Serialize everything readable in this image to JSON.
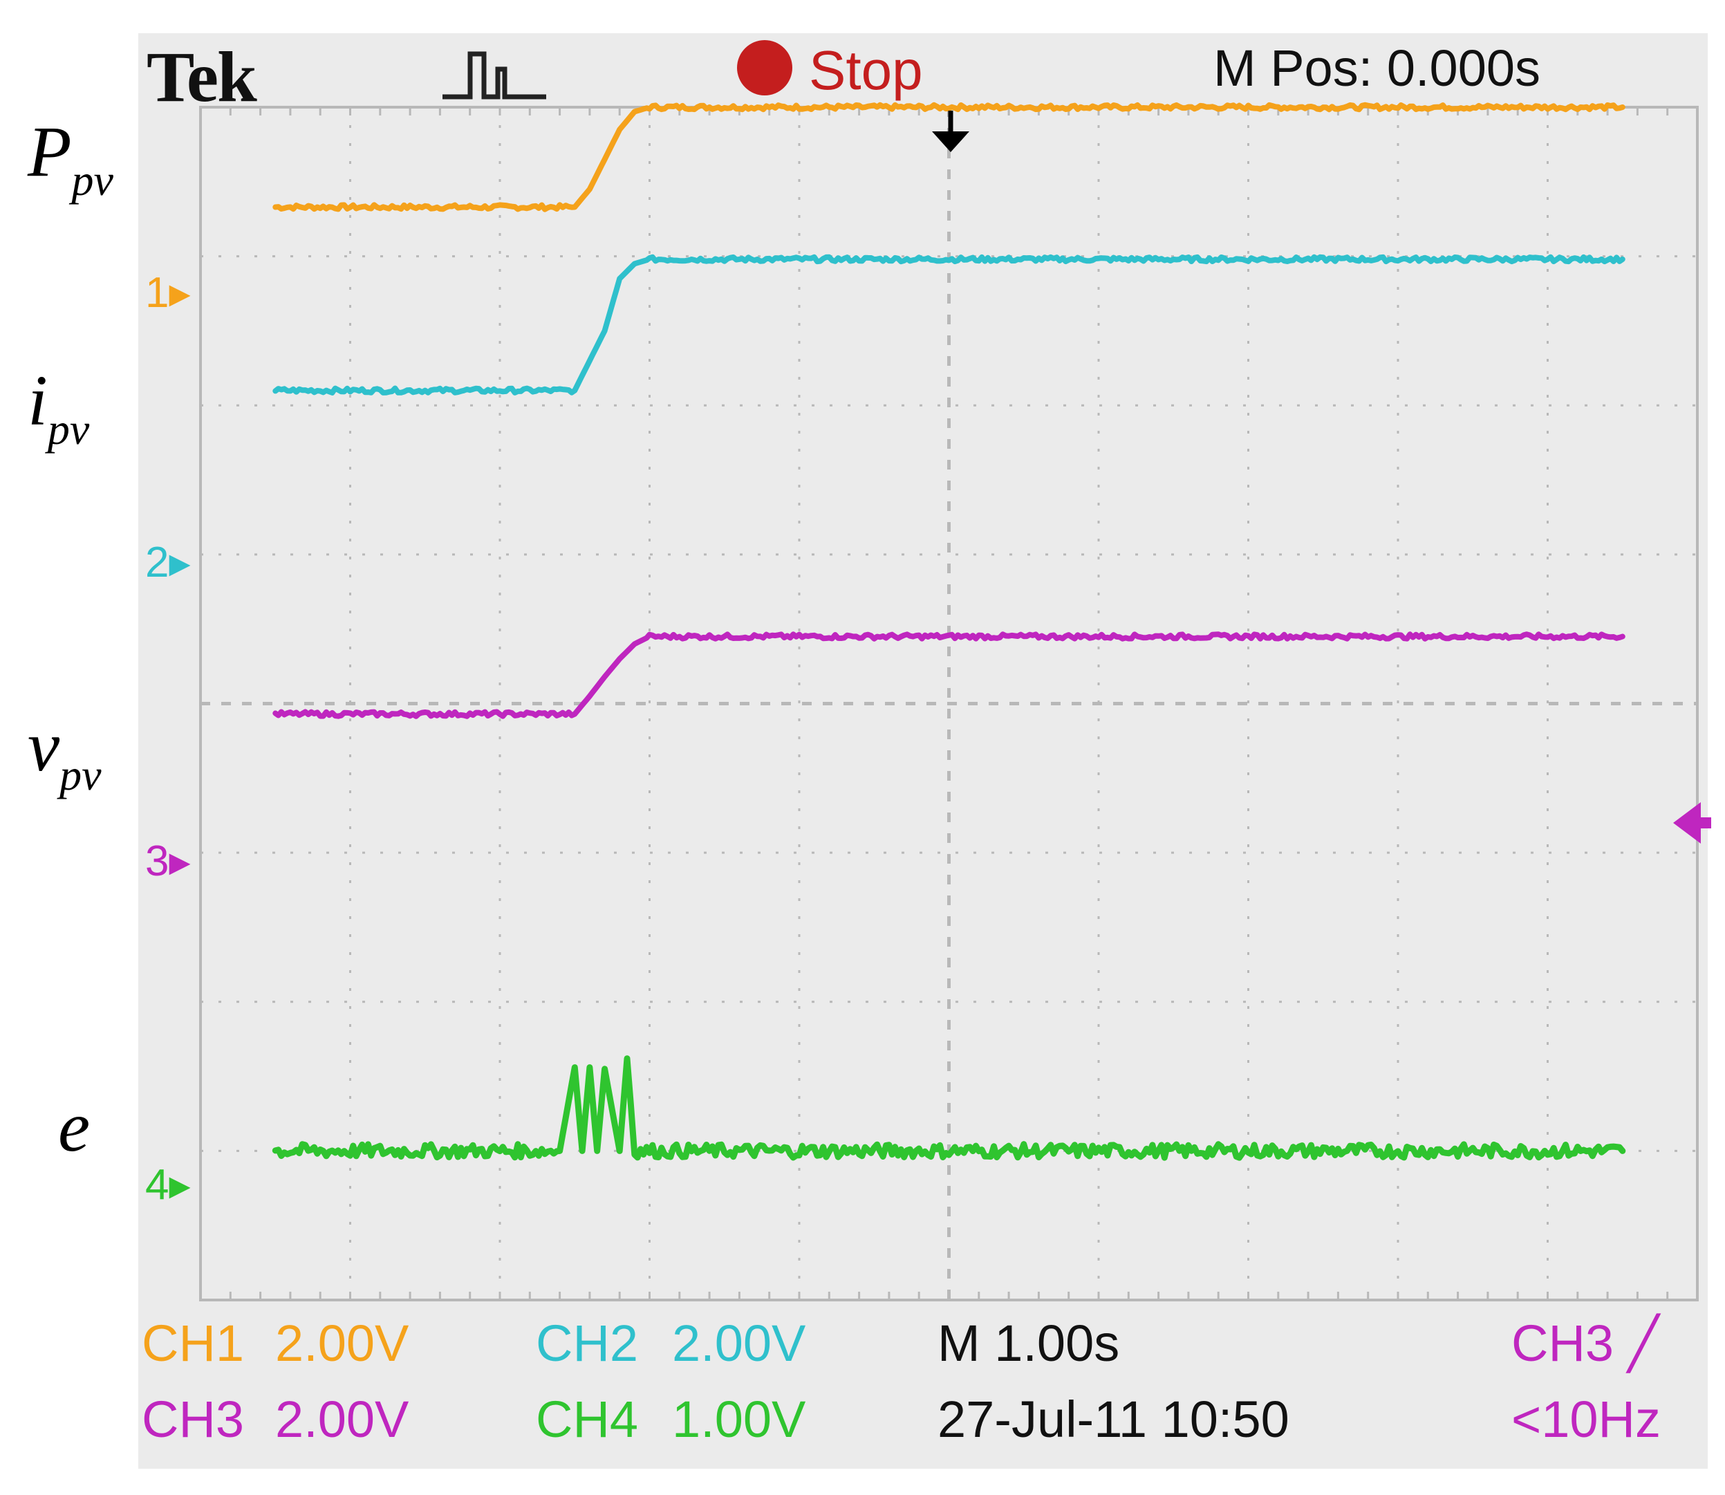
{
  "header": {
    "brand": "Tek",
    "run_status": "Stop",
    "position": "M Pos: 0.000s",
    "icons": [
      "trigger-pulse-icon",
      "stop-dot-icon",
      "trigger-position-arrow-icon",
      "ch3-level-marker-icon"
    ]
  },
  "footer": {
    "ch1": {
      "label": "CH1",
      "scale": "2.00V"
    },
    "ch2": {
      "label": "CH2",
      "scale": "2.00V"
    },
    "ch3": {
      "label": "CH3",
      "scale": "2.00V"
    },
    "ch4": {
      "label": "CH4",
      "scale": "1.00V"
    },
    "timebase": "M 1.00s",
    "datetime": "27-Jul-11 10:50",
    "trigger_source": "CH3",
    "trigger_freq": "<10Hz"
  },
  "colors": {
    "ch1": "#f5a21b",
    "ch2": "#2fc0cc",
    "ch3": "#bf26bf",
    "ch4": "#2fc42f",
    "stop": "#c41e1e",
    "panel": "#ebebeb"
  },
  "chart_data": {
    "type": "line",
    "x_unit": "s",
    "xlim": [
      -5,
      5
    ],
    "ylim": [
      -4,
      4
    ],
    "grid": true,
    "channel_markers": [
      {
        "channel": "1",
        "div": 3.0
      },
      {
        "channel": "2",
        "div": 1.2
      },
      {
        "channel": "3",
        "div": -0.8
      },
      {
        "channel": "4",
        "div": -3.0
      }
    ],
    "series": [
      {
        "name": "P",
        "subscript": "pv",
        "channel": "CH1",
        "x": [
          -4.5,
          -2.5,
          -2.4,
          -2.3,
          -2.2,
          -2.1,
          -2.0,
          4.5
        ],
        "y": [
          0.33,
          0.33,
          0.45,
          0.65,
          0.85,
          0.97,
          1.0,
          1.0
        ]
      },
      {
        "name": "i",
        "subscript": "pv",
        "channel": "CH2",
        "x": [
          -4.5,
          -2.5,
          -2.4,
          -2.3,
          -2.2,
          -2.1,
          -2.0,
          4.5
        ],
        "y": [
          0.9,
          0.9,
          1.1,
          1.3,
          1.65,
          1.75,
          1.78,
          1.78
        ]
      },
      {
        "name": "v",
        "subscript": "pv",
        "channel": "CH3",
        "x": [
          -4.5,
          -2.5,
          -2.4,
          -2.3,
          -2.2,
          -2.1,
          -2.0,
          4.5
        ],
        "y": [
          0.73,
          0.73,
          0.85,
          0.98,
          1.1,
          1.2,
          1.25,
          1.25
        ]
      },
      {
        "name": "e",
        "channel": "CH4",
        "x": [
          -4.5,
          -2.6,
          -2.5,
          -2.45,
          -2.4,
          -2.35,
          -2.3,
          -2.2,
          -2.15,
          -2.1,
          4.5
        ],
        "y": [
          0.0,
          0.0,
          0.56,
          0.0,
          0.56,
          0.0,
          0.55,
          0.0,
          0.62,
          0.0,
          0.0
        ]
      }
    ]
  }
}
